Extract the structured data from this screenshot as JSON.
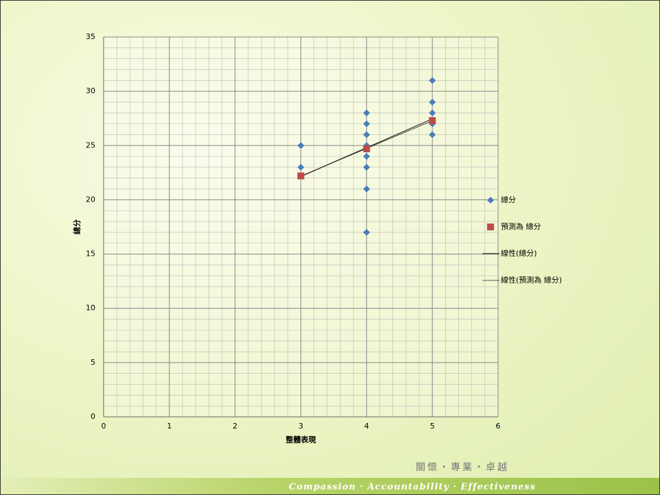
{
  "chart_data": {
    "type": "scatter",
    "xlabel": "整體表現",
    "ylabel": "總分",
    "xlim": [
      0,
      6
    ],
    "xticks": [
      0,
      1,
      2,
      3,
      4,
      5,
      6
    ],
    "ylim": [
      0,
      35
    ],
    "yticks": [
      0,
      5,
      10,
      15,
      20,
      25,
      30,
      35
    ],
    "grid": true,
    "xminor": 0.2,
    "yminor": 1,
    "legend": "right",
    "series": [
      {
        "name": "總分",
        "color": "#4a7ebb",
        "marker": "diamond",
        "trendline_name": "線性(總分)",
        "x": [
          3,
          3,
          4,
          4,
          4,
          4,
          4,
          4,
          4,
          4,
          5,
          5,
          5,
          5,
          5
        ],
        "values": [
          25,
          23,
          28,
          27,
          26,
          25,
          24,
          23,
          21,
          17,
          31,
          29,
          28,
          27,
          26
        ]
      },
      {
        "name": "預測為 總分",
        "color": "#be4b48",
        "marker": "square",
        "trendline_name": "線性(預測為 總分)",
        "x": [
          3,
          4,
          5
        ],
        "values": [
          22.2,
          24.7,
          27.3
        ]
      }
    ]
  },
  "footer": {
    "motto": "Compassion · Accountability · Effectiveness",
    "chinese": "關懷・專業・卓越"
  }
}
